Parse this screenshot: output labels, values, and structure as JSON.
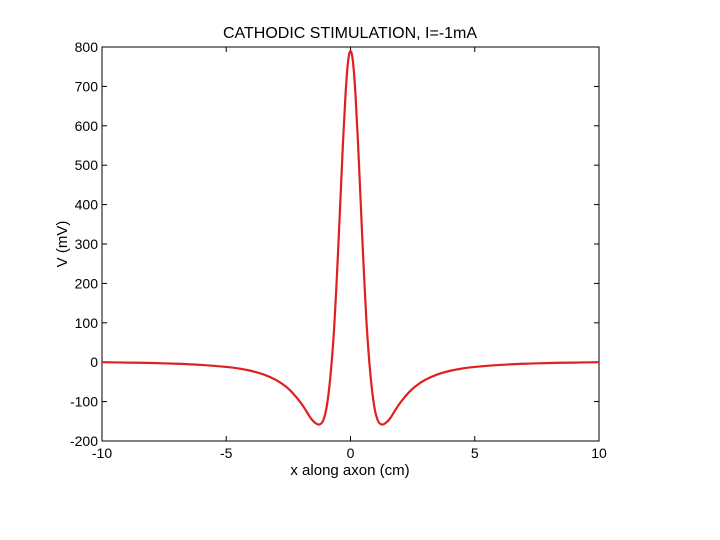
{
  "chart_data": {
    "type": "line",
    "title": "CATHODIC STIMULATION, I=-1mA",
    "xlabel": "x along axon (cm)",
    "ylabel": "V (mV)",
    "xlim": [
      -10,
      10
    ],
    "ylim": [
      -200,
      800
    ],
    "xticks": [
      -10,
      -5,
      0,
      5,
      10
    ],
    "yticks": [
      -200,
      -100,
      0,
      100,
      200,
      300,
      400,
      500,
      600,
      700,
      800
    ],
    "xtick_labels": [
      "-10",
      "-5",
      "0",
      "5",
      "10"
    ],
    "ytick_labels": [
      "-200",
      "-100",
      "0",
      "100",
      "200",
      "300",
      "400",
      "500",
      "600",
      "700",
      "800"
    ],
    "grid": false,
    "series": [
      {
        "color": "#e02020",
        "x": [
          -10,
          -9,
          -8,
          -7,
          -6,
          -5,
          -4.5,
          -4,
          -3.5,
          -3,
          -2.6,
          -2.3,
          -2,
          -1.8,
          -1.6,
          -1.4,
          -1.25,
          -1.1,
          -0.95,
          -0.8,
          -0.65,
          -0.5,
          -0.4,
          -0.3,
          -0.2,
          -0.1,
          0,
          0.1,
          0.2,
          0.3,
          0.4,
          0.5,
          0.65,
          0.8,
          0.95,
          1.1,
          1.25,
          1.4,
          1.6,
          1.8,
          2,
          2.3,
          2.6,
          3,
          3.5,
          4,
          4.5,
          5,
          6,
          7,
          8,
          9,
          10
        ],
        "y": [
          0,
          -1,
          -2,
          -4,
          -7,
          -12,
          -16,
          -22,
          -31,
          -45,
          -62,
          -80,
          -103,
          -122,
          -142,
          -155,
          -158,
          -148,
          -110,
          -30,
          95,
          280,
          420,
          560,
          680,
          762,
          790,
          762,
          680,
          560,
          420,
          280,
          95,
          -30,
          -110,
          -148,
          -158,
          -155,
          -142,
          -122,
          -103,
          -80,
          -62,
          -45,
          -31,
          -22,
          -16,
          -12,
          -7,
          -4,
          -2,
          -1,
          0
        ]
      }
    ]
  }
}
